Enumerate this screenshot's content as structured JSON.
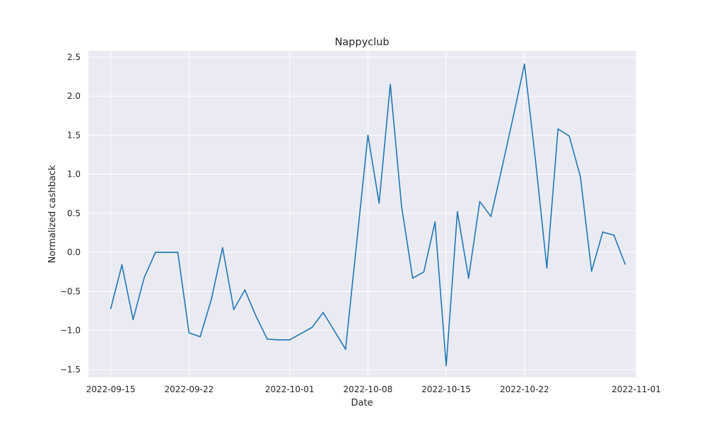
{
  "chart_data": {
    "type": "line",
    "title": "Nappyclub",
    "xlabel": "Date",
    "ylabel": "Normalized cashback",
    "grid": true,
    "legend": "none",
    "xlim": [
      "2022-09-13",
      "2022-11-01"
    ],
    "ylim": [
      -1.6,
      2.58
    ],
    "x_ticks": [
      "2022-09-15",
      "2022-09-22",
      "2022-10-01",
      "2022-10-08",
      "2022-10-15",
      "2022-10-22",
      "2022-11-01"
    ],
    "y_ticks": [
      -1.5,
      -1.0,
      -0.5,
      0.0,
      0.5,
      1.0,
      1.5,
      2.0,
      2.5
    ],
    "y_tick_labels": [
      "−1.5",
      "−1.0",
      "−0.5",
      "0.0",
      "0.5",
      "1.0",
      "1.5",
      "2.0",
      "2.5"
    ],
    "series": [
      {
        "color": "#1f77b4",
        "points": [
          {
            "x": "2022-09-15",
            "y": -0.72
          },
          {
            "x": "2022-09-16",
            "y": -0.16
          },
          {
            "x": "2022-09-17",
            "y": -0.86
          },
          {
            "x": "2022-09-18",
            "y": -0.32
          },
          {
            "x": "2022-09-19",
            "y": 0.0
          },
          {
            "x": "2022-09-20",
            "y": 0.0
          },
          {
            "x": "2022-09-21",
            "y": 0.0
          },
          {
            "x": "2022-09-22",
            "y": -1.03
          },
          {
            "x": "2022-09-23",
            "y": -1.08
          },
          {
            "x": "2022-09-24",
            "y": -0.6
          },
          {
            "x": "2022-09-25",
            "y": 0.06
          },
          {
            "x": "2022-09-26",
            "y": -0.73
          },
          {
            "x": "2022-09-27",
            "y": -0.48
          },
          {
            "x": "2022-09-28",
            "y": -0.82
          },
          {
            "x": "2022-09-29",
            "y": -1.11
          },
          {
            "x": "2022-09-30",
            "y": -1.12
          },
          {
            "x": "2022-10-01",
            "y": -1.12
          },
          {
            "x": "2022-10-03",
            "y": -0.96
          },
          {
            "x": "2022-10-04",
            "y": -0.77
          },
          {
            "x": "2022-10-06",
            "y": -1.24
          },
          {
            "x": "2022-10-08",
            "y": 1.5
          },
          {
            "x": "2022-10-09",
            "y": 0.63
          },
          {
            "x": "2022-10-10",
            "y": 2.15
          },
          {
            "x": "2022-10-11",
            "y": 0.6
          },
          {
            "x": "2022-10-12",
            "y": -0.33
          },
          {
            "x": "2022-10-13",
            "y": -0.25
          },
          {
            "x": "2022-10-14",
            "y": 0.39
          },
          {
            "x": "2022-10-15",
            "y": -1.45
          },
          {
            "x": "2022-10-16",
            "y": 0.52
          },
          {
            "x": "2022-10-17",
            "y": -0.33
          },
          {
            "x": "2022-10-18",
            "y": 0.65
          },
          {
            "x": "2022-10-19",
            "y": 0.46
          },
          {
            "x": "2022-10-20",
            "y": 1.09
          },
          {
            "x": "2022-10-21",
            "y": 1.74
          },
          {
            "x": "2022-10-22",
            "y": 2.41
          },
          {
            "x": "2022-10-23",
            "y": 1.16
          },
          {
            "x": "2022-10-24",
            "y": -0.2
          },
          {
            "x": "2022-10-25",
            "y": 1.58
          },
          {
            "x": "2022-10-26",
            "y": 1.49
          },
          {
            "x": "2022-10-27",
            "y": 0.97
          },
          {
            "x": "2022-10-28",
            "y": -0.24
          },
          {
            "x": "2022-10-29",
            "y": 0.26
          },
          {
            "x": "2022-10-30",
            "y": 0.22
          },
          {
            "x": "2022-10-31",
            "y": -0.15
          }
        ]
      }
    ]
  }
}
